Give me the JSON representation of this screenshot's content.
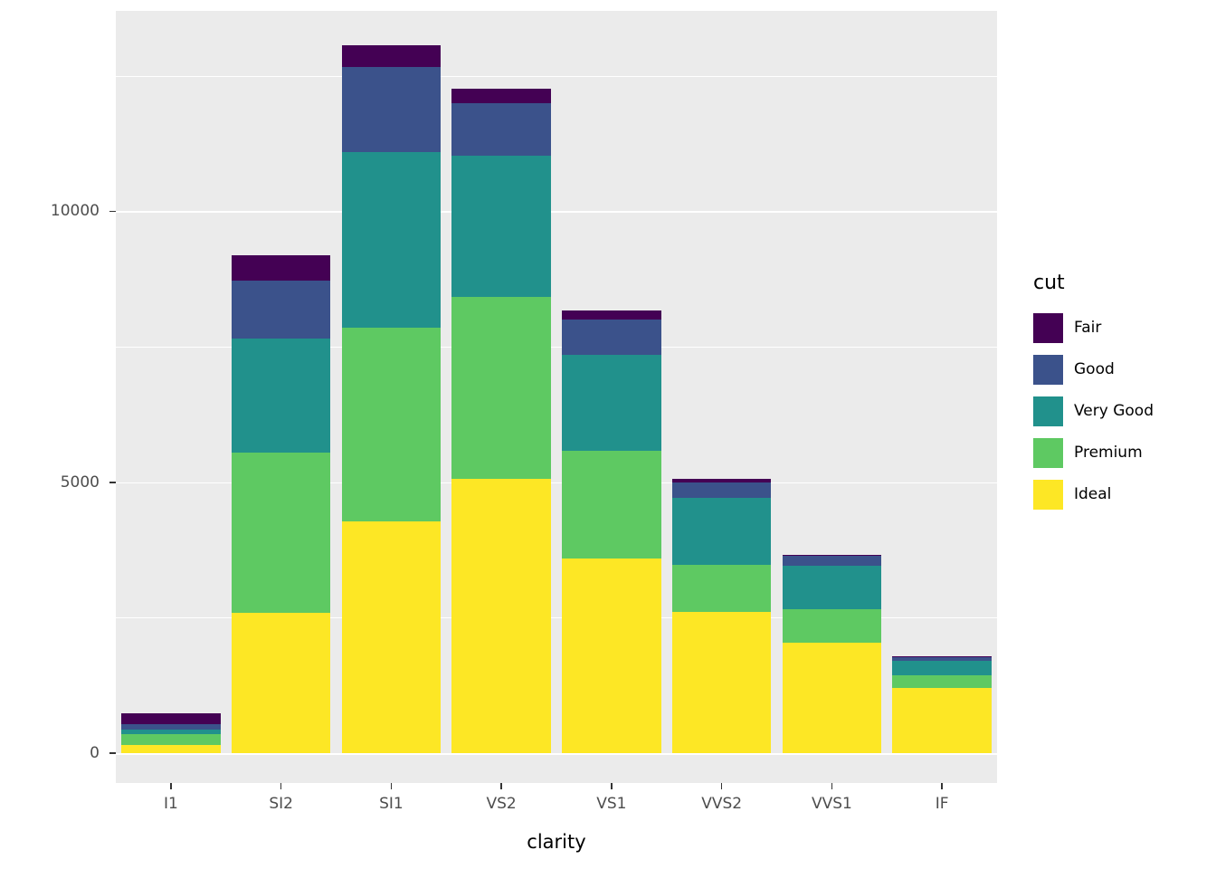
{
  "chart_data": {
    "type": "bar",
    "stacked": true,
    "title": "",
    "xlabel": "clarity",
    "ylabel": "",
    "categories": [
      "I1",
      "SI2",
      "SI1",
      "VS2",
      "VS1",
      "VVS2",
      "VVS1",
      "IF"
    ],
    "series": [
      {
        "name": "Fair",
        "color": "#440154",
        "values": [
          210,
          466,
          408,
          261,
          170,
          69,
          17,
          9
        ]
      },
      {
        "name": "Good",
        "color": "#3B528B",
        "values": [
          96,
          1081,
          1560,
          978,
          648,
          286,
          186,
          71
        ]
      },
      {
        "name": "Very Good",
        "color": "#21918C",
        "values": [
          84,
          2100,
          3240,
          2591,
          1775,
          1235,
          789,
          268
        ]
      },
      {
        "name": "Premium",
        "color": "#5EC962",
        "values": [
          205,
          2949,
          3575,
          3357,
          1989,
          870,
          616,
          230
        ]
      },
      {
        "name": "Ideal",
        "color": "#FDE725",
        "values": [
          146,
          2598,
          4282,
          5071,
          3589,
          2606,
          2047,
          1212
        ]
      }
    ],
    "stack_order_top_to_bottom": [
      "Fair",
      "Good",
      "Very Good",
      "Premium",
      "Ideal"
    ],
    "totals": [
      741,
      9194,
      13065,
      12258,
      8171,
      5066,
      3655,
      1790
    ],
    "ylim": [
      -550,
      13700
    ],
    "yticks": {
      "values": [
        0,
        5000,
        10000
      ],
      "labels": [
        "0",
        "5000",
        "10000"
      ]
    },
    "yticks_minor": [
      2500,
      7500,
      12500
    ],
    "grid": "on",
    "panel_background": "#EBEBEB",
    "grid_color": "#FFFFFF",
    "legend": {
      "title": "cut",
      "position": "right",
      "entries": [
        "Fair",
        "Good",
        "Very Good",
        "Premium",
        "Ideal"
      ]
    }
  }
}
